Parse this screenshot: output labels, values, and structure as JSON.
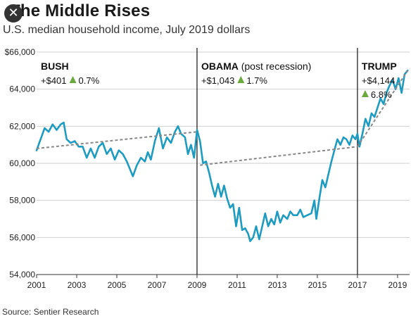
{
  "title": "The Middle Rises",
  "subtitle": "U.S. median household income, July 2019 dollars",
  "source": "Source: Sentier Research",
  "close_label": "✕",
  "chart_data": {
    "type": "line",
    "title": "The Middle Rises",
    "subtitle": "U.S. median household income, July 2019 dollars",
    "xlim": [
      2001,
      2019.6
    ],
    "ylim": [
      54000,
      66000
    ],
    "grid": true,
    "y_ticks": [
      54000,
      56000,
      58000,
      60000,
      62000,
      64000,
      66000
    ],
    "y_tick_labels": [
      "54,000",
      "56,000",
      "58,000",
      "60,000",
      "62,000",
      "64,000",
      "$66,000"
    ],
    "x_ticks": [
      2001,
      2003,
      2005,
      2007,
      2009,
      2011,
      2013,
      2015,
      2017,
      2019
    ],
    "x_tick_labels": [
      "2001",
      "2003",
      "2005",
      "2007",
      "2009",
      "2011",
      "2013",
      "2015",
      "2017",
      "2019"
    ],
    "era_dividers": [
      2009,
      2017
    ],
    "line_color": "#1e9bc0",
    "trend_color": "#888888",
    "up_color": "#6aaa3e",
    "series": [
      {
        "values": [
          [
            2001.0,
            60700
          ],
          [
            2001.2,
            61300
          ],
          [
            2001.4,
            61900
          ],
          [
            2001.6,
            61700
          ],
          [
            2001.8,
            62100
          ],
          [
            2002.0,
            61800
          ],
          [
            2002.2,
            62100
          ],
          [
            2002.35,
            62200
          ],
          [
            2002.5,
            61300
          ],
          [
            2002.7,
            61100
          ],
          [
            2002.9,
            61200
          ],
          [
            2003.1,
            60900
          ],
          [
            2003.3,
            60900
          ],
          [
            2003.5,
            60300
          ],
          [
            2003.7,
            60800
          ],
          [
            2003.9,
            60300
          ],
          [
            2004.1,
            60900
          ],
          [
            2004.3,
            61100
          ],
          [
            2004.5,
            60500
          ],
          [
            2004.7,
            60800
          ],
          [
            2004.9,
            60200
          ],
          [
            2005.1,
            60700
          ],
          [
            2005.3,
            60500
          ],
          [
            2005.5,
            60100
          ],
          [
            2005.65,
            59700
          ],
          [
            2005.8,
            59300
          ],
          [
            2006.0,
            59900
          ],
          [
            2006.2,
            60300
          ],
          [
            2006.4,
            60100
          ],
          [
            2006.55,
            60600
          ],
          [
            2006.7,
            60200
          ],
          [
            2006.9,
            61200
          ],
          [
            2007.1,
            61900
          ],
          [
            2007.3,
            60800
          ],
          [
            2007.5,
            61400
          ],
          [
            2007.7,
            61100
          ],
          [
            2007.9,
            61700
          ],
          [
            2008.05,
            62000
          ],
          [
            2008.2,
            61600
          ],
          [
            2008.4,
            61400
          ],
          [
            2008.55,
            60500
          ],
          [
            2008.7,
            61000
          ],
          [
            2008.85,
            60300
          ],
          [
            2009.0,
            61800
          ],
          [
            2009.15,
            61200
          ],
          [
            2009.3,
            60000
          ],
          [
            2009.45,
            60100
          ],
          [
            2009.6,
            59500
          ],
          [
            2009.75,
            58800
          ],
          [
            2009.9,
            58200
          ],
          [
            2010.05,
            58900
          ],
          [
            2010.2,
            58200
          ],
          [
            2010.35,
            58800
          ],
          [
            2010.5,
            58100
          ],
          [
            2010.65,
            57600
          ],
          [
            2010.8,
            57800
          ],
          [
            2010.95,
            56600
          ],
          [
            2011.1,
            57600
          ],
          [
            2011.25,
            56400
          ],
          [
            2011.4,
            56500
          ],
          [
            2011.55,
            56200
          ],
          [
            2011.65,
            55800
          ],
          [
            2011.8,
            56000
          ],
          [
            2011.95,
            56600
          ],
          [
            2012.1,
            55900
          ],
          [
            2012.25,
            56600
          ],
          [
            2012.4,
            57300
          ],
          [
            2012.55,
            56600
          ],
          [
            2012.7,
            57000
          ],
          [
            2012.85,
            56700
          ],
          [
            2013.0,
            57400
          ],
          [
            2013.15,
            56800
          ],
          [
            2013.3,
            57200
          ],
          [
            2013.5,
            57000
          ],
          [
            2013.65,
            57400
          ],
          [
            2013.8,
            57200
          ],
          [
            2014.0,
            57200
          ],
          [
            2014.15,
            57500
          ],
          [
            2014.3,
            57100
          ],
          [
            2014.5,
            57200
          ],
          [
            2014.7,
            57300
          ],
          [
            2014.85,
            58000
          ],
          [
            2014.95,
            57000
          ],
          [
            2015.1,
            58100
          ],
          [
            2015.25,
            59100
          ],
          [
            2015.4,
            58700
          ],
          [
            2015.55,
            59400
          ],
          [
            2015.7,
            60100
          ],
          [
            2015.85,
            60700
          ],
          [
            2016.0,
            61300
          ],
          [
            2016.15,
            61000
          ],
          [
            2016.3,
            61400
          ],
          [
            2016.45,
            61300
          ],
          [
            2016.6,
            61000
          ],
          [
            2016.75,
            61500
          ],
          [
            2016.9,
            61300
          ],
          [
            2017.0,
            61600
          ],
          [
            2017.1,
            60900
          ],
          [
            2017.25,
            61600
          ],
          [
            2017.4,
            62400
          ],
          [
            2017.55,
            62000
          ],
          [
            2017.7,
            62700
          ],
          [
            2017.85,
            62500
          ],
          [
            2018.0,
            63000
          ],
          [
            2018.15,
            63500
          ],
          [
            2018.3,
            63200
          ],
          [
            2018.45,
            63800
          ],
          [
            2018.6,
            64200
          ],
          [
            2018.75,
            64500
          ],
          [
            2018.9,
            64000
          ],
          [
            2019.05,
            64600
          ],
          [
            2019.2,
            63800
          ],
          [
            2019.35,
            64800
          ],
          [
            2019.5,
            65000
          ]
        ]
      }
    ],
    "trendlines": [
      {
        "from": [
          2001.0,
          60800
        ],
        "to": [
          2009.0,
          61700
        ]
      },
      {
        "from": [
          2009.15,
          59900
        ],
        "to": [
          2017.0,
          60900
        ]
      },
      {
        "from": [
          2017.0,
          60900
        ],
        "to": [
          2019.5,
          65000
        ]
      }
    ],
    "annotations": [
      {
        "x": 2001,
        "name": "BUSH",
        "note": "",
        "change": "+$401",
        "pct": "0.7%",
        "pct_on_new_line": false
      },
      {
        "x": 2009,
        "name": "OBAMA",
        "note": "(post recession)",
        "change": "+$1,043",
        "pct": "1.7%",
        "pct_on_new_line": false
      },
      {
        "x": 2017,
        "name": "TRUMP",
        "note": "",
        "change": "+$4,144",
        "pct": "6.8%",
        "pct_on_new_line": true
      }
    ]
  }
}
